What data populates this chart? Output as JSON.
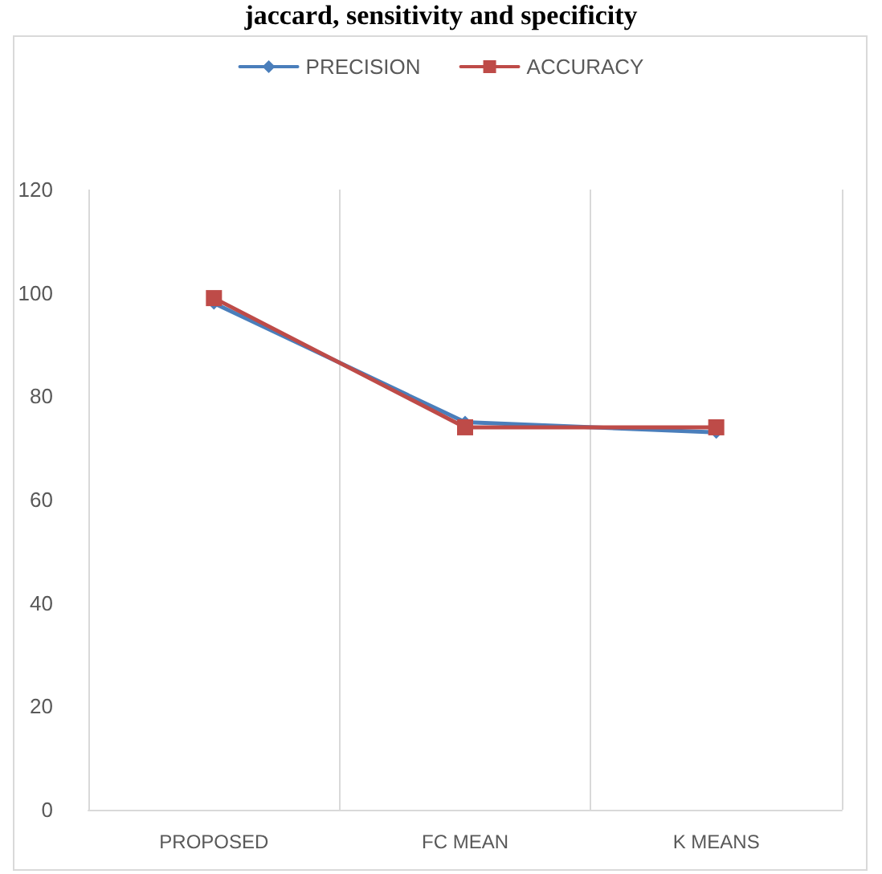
{
  "chart_data": {
    "type": "line",
    "title": "jaccard, sensitivity and specificity",
    "categories": [
      "PROPOSED",
      "FC MEAN",
      "K MEANS"
    ],
    "series": [
      {
        "name": "PRECISION",
        "color": "#4a7ebb",
        "values": [
          98,
          75,
          73
        ],
        "marker": "diamond"
      },
      {
        "name": "ACCURACY",
        "color": "#be4b48",
        "values": [
          99,
          74,
          74
        ],
        "marker": "square"
      }
    ],
    "ylim": [
      0,
      120
    ],
    "yticks": [
      0,
      20,
      40,
      60,
      80,
      100,
      120
    ],
    "grid": "x",
    "legend": "top"
  }
}
